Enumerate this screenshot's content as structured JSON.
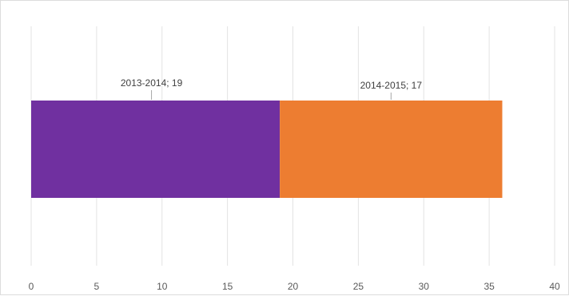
{
  "chart_data": {
    "type": "bar",
    "orientation": "horizontal",
    "stacked": true,
    "title": "",
    "xlabel": "",
    "ylabel": "",
    "xlim": [
      0,
      40
    ],
    "xticks": [
      0,
      5,
      10,
      15,
      20,
      25,
      30,
      35,
      40
    ],
    "grid": true,
    "legend": "none",
    "series": [
      {
        "name": "2013-2014",
        "value": 19,
        "color": "#7030A0",
        "label": "2013-2014; 19"
      },
      {
        "name": "2014-2015",
        "value": 17,
        "color": "#ED7D31",
        "label": "2014-2015; 17"
      }
    ]
  }
}
